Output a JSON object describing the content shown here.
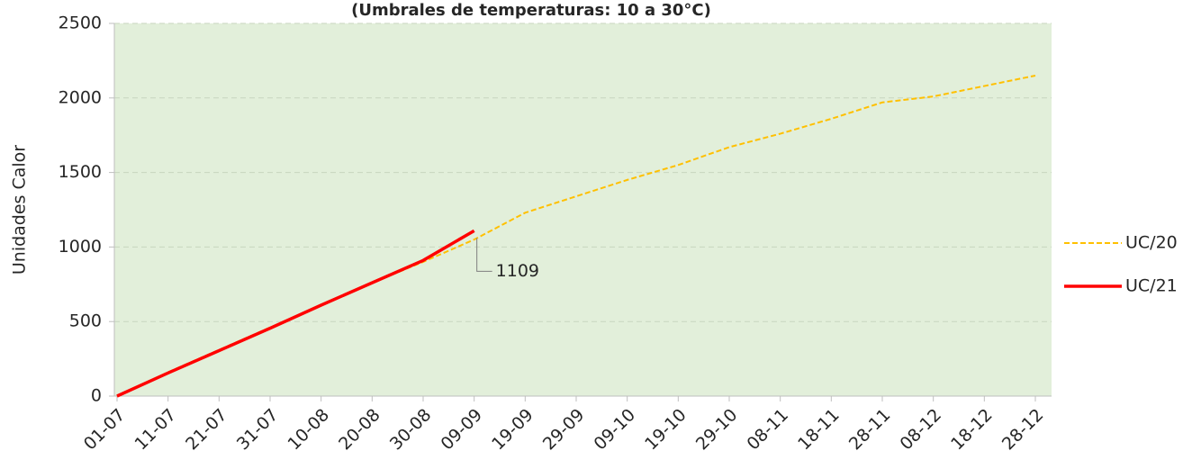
{
  "chart_data": {
    "type": "line",
    "subtitle": "(Umbrales de temperaturas: 10 a  30°C)",
    "y_label": "Unidades Calor",
    "categories": [
      "01-07",
      "11-07",
      "21-07",
      "31-07",
      "10-08",
      "20-08",
      "30-08",
      "09-09",
      "19-09",
      "29-09",
      "09-10",
      "19-10",
      "29-10",
      "08-11",
      "18-11",
      "28-11",
      "08-12",
      "18-12",
      "28-12"
    ],
    "series": [
      {
        "name": "UC/20",
        "color": "#ffc000",
        "dashed": true,
        "values": [
          0,
          160,
          310,
          460,
          610,
          760,
          900,
          1050,
          1230,
          1340,
          1450,
          1550,
          1670,
          1760,
          1860,
          1970,
          2010,
          2080,
          2150
        ]
      },
      {
        "name": "UC/21",
        "color": "#ff0000",
        "dashed": false,
        "values": [
          0,
          155,
          305,
          455,
          610,
          760,
          910,
          1109,
          null,
          null,
          null,
          null,
          null,
          null,
          null,
          null,
          null,
          null,
          null
        ]
      }
    ],
    "ylim": [
      0,
      2500
    ],
    "yticks": [
      0,
      500,
      1000,
      1500,
      2000,
      2500
    ],
    "grid": true,
    "legend": "right",
    "background": "#e2efda"
  }
}
